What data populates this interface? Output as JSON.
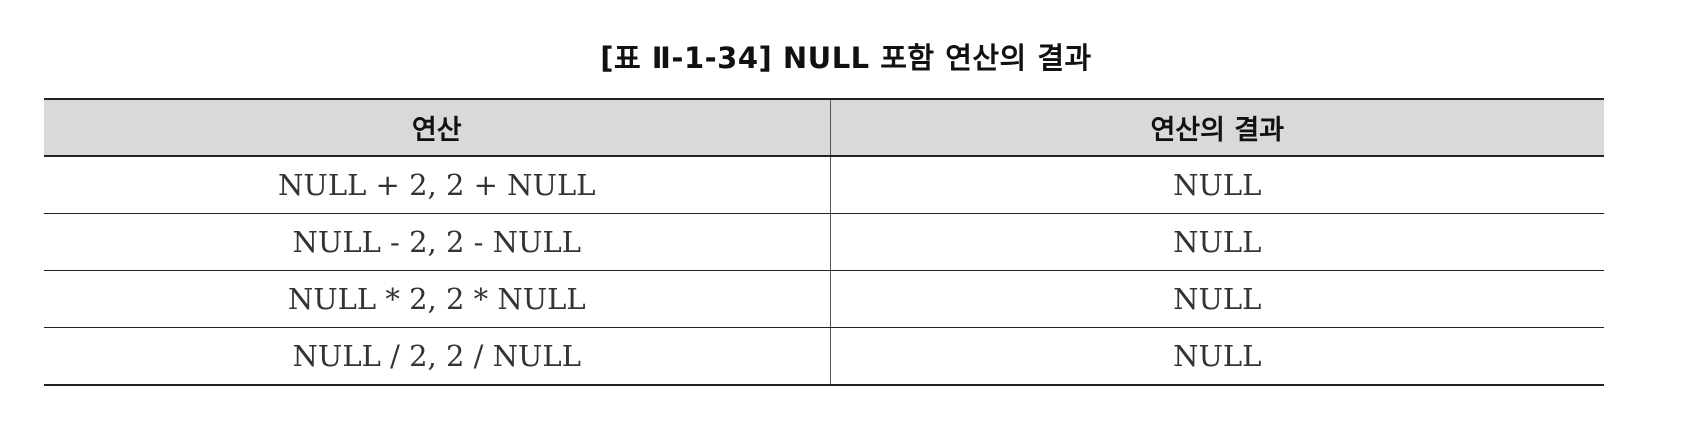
{
  "caption": "[표 Ⅱ-1-34] NULL 포함 연산의 결과",
  "table": {
    "headers": [
      "연산",
      "연산의 결과"
    ],
    "rows": [
      [
        "NULL + 2, 2 + NULL",
        "NULL"
      ],
      [
        "NULL - 2, 2 - NULL",
        "NULL"
      ],
      [
        "NULL * 2, 2 * NULL",
        "NULL"
      ],
      [
        "NULL / 2, 2 / NULL",
        "NULL"
      ]
    ]
  },
  "colors": {
    "header_background": "#d9d9d9",
    "rule": "#222222",
    "text": "#333333"
  }
}
